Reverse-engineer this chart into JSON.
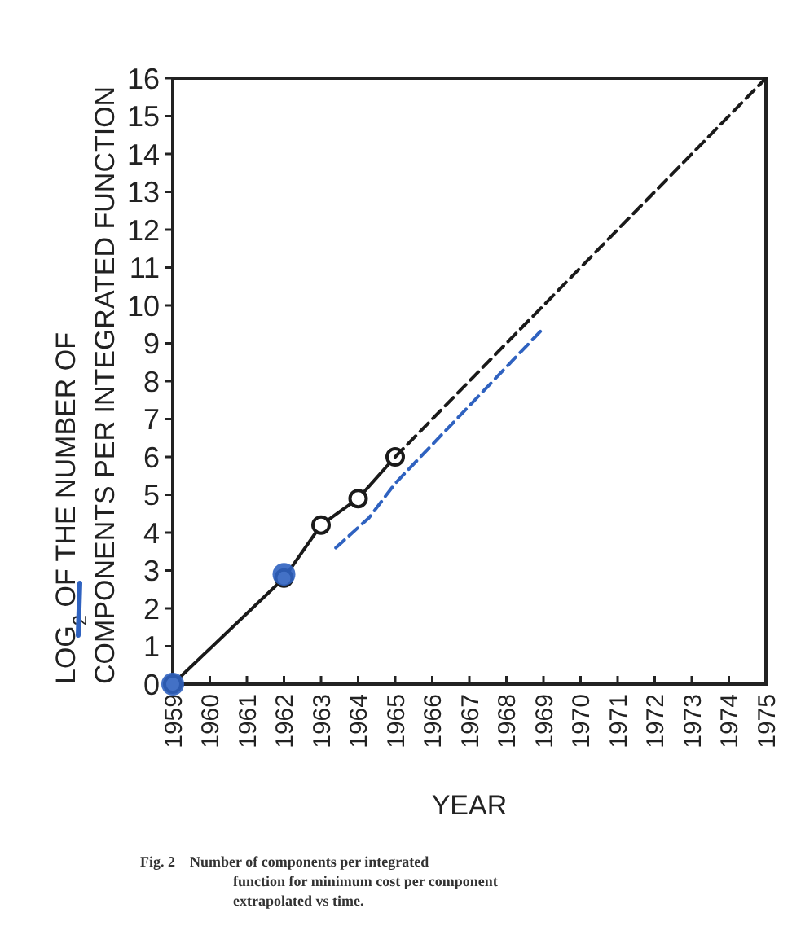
{
  "chart_data": {
    "type": "line",
    "xlabel": "YEAR",
    "ylabel": "LOG$_{2}$ OF THE NUMBER OF\nCOMPONENTS PER INTEGRATED FUNCTION",
    "annotations": [
      "Fig. 2    Number of components per integrated\nfunction for minimum cost per component\nextrapolated vs time."
    ],
    "xlim": [
      1959,
      1975
    ],
    "xticks": [
      1959,
      1960,
      1961,
      1962,
      1963,
      1964,
      1965,
      1966,
      1967,
      1968,
      1969,
      1970,
      1971,
      1972,
      1973,
      1974,
      1975
    ],
    "ylim": [
      0,
      16
    ],
    "yticks": [
      0,
      1,
      2,
      3,
      4,
      5,
      6,
      7,
      8,
      9,
      10,
      11,
      12,
      13,
      14,
      15,
      16
    ],
    "grid": false,
    "series": [
      {
        "color": "#1a1a1a",
        "x": [
          1959,
          1962,
          1963,
          1964,
          1965
        ],
        "values": [
          0,
          2.8,
          4.2,
          4.9,
          6
        ],
        "marker": "circle",
        "line_style": "solid"
      },
      {
        "color": "#1a1a1a",
        "x": [
          1965,
          1975
        ],
        "values": [
          6,
          16
        ],
        "marker": "none",
        "line_style": "dashed"
      },
      {
        "color": "#2f62c0",
        "x": [
          1963.4,
          1964.3,
          1965,
          1969
        ],
        "values": [
          3.6,
          4.4,
          5.3,
          9.4
        ],
        "marker": "none",
        "line_style": "dashed"
      },
      {
        "type": "scatter",
        "color": "#2f62c0",
        "x": [
          1959,
          1962
        ],
        "values": [
          0,
          2.9
        ],
        "marker": "circle"
      }
    ]
  }
}
